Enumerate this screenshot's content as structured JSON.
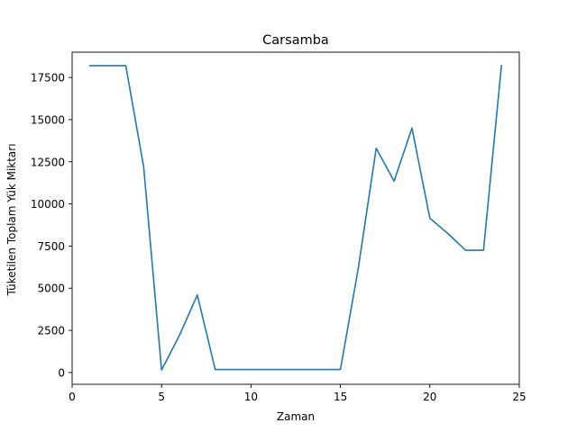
{
  "chart_data": {
    "type": "line",
    "title": "Carsamba",
    "xlabel": "Zaman",
    "ylabel": "Tüketilen Toplam Yük Miktarı",
    "xlim": [
      0,
      25
    ],
    "ylim": [
      -700,
      19000
    ],
    "xticks": [
      0,
      5,
      10,
      15,
      20,
      25
    ],
    "yticks": [
      0,
      2500,
      5000,
      7500,
      10000,
      12500,
      15000,
      17500
    ],
    "grid": false,
    "line_color": "#1f77b4",
    "series": [
      {
        "x": [
          1,
          2,
          3,
          4,
          5,
          6,
          7,
          8,
          9,
          10,
          11,
          12,
          13,
          14,
          15,
          16,
          17,
          18,
          19,
          20,
          21,
          22,
          23,
          24
        ],
        "y": [
          18200,
          18200,
          18200,
          12200,
          150,
          2200,
          4600,
          180,
          180,
          180,
          180,
          180,
          180,
          180,
          180,
          6200,
          13300,
          11350,
          14500,
          9150,
          8250,
          7250,
          7250,
          18200
        ]
      }
    ]
  }
}
